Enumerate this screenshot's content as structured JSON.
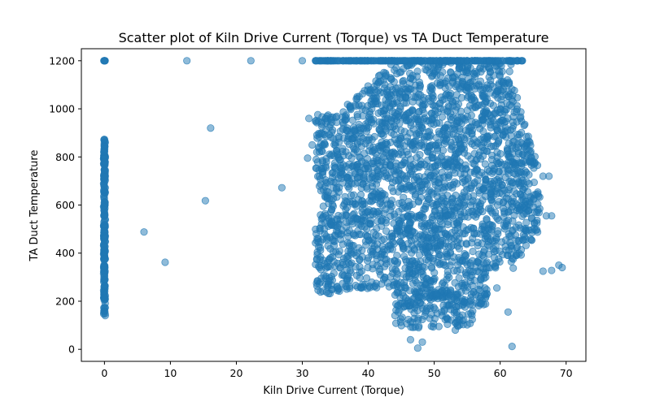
{
  "chart_data": {
    "type": "scatter",
    "title": "Scatter plot of Kiln Drive Current (Torque) vs TA Duct Temperature",
    "xlabel": "Kiln Drive Current (Torque)",
    "ylabel": "TA Duct Temperature",
    "xlim": [
      -3.5,
      73
    ],
    "ylim": [
      -50,
      1250
    ],
    "xticks": [
      0,
      10,
      20,
      30,
      40,
      50,
      60,
      70
    ],
    "yticks": [
      0,
      200,
      400,
      600,
      800,
      1000,
      1200
    ],
    "grid": false,
    "legend": "none",
    "color": "#1f77b4",
    "alpha": 0.5,
    "zero_cluster": {
      "x": 0,
      "y_range": [
        140,
        880
      ],
      "cap_y": 1200
    },
    "isolated_points": [
      {
        "x": 12.5,
        "y": 1200
      },
      {
        "x": 22.2,
        "y": 1200
      },
      {
        "x": 30.0,
        "y": 1200
      },
      {
        "x": 16.1,
        "y": 920
      },
      {
        "x": 26.9,
        "y": 672
      },
      {
        "x": 15.3,
        "y": 618
      },
      {
        "x": 6.0,
        "y": 488
      },
      {
        "x": 9.2,
        "y": 362
      }
    ],
    "dense_region": {
      "x_range": [
        31,
        70
      ],
      "y_range": [
        0,
        1200
      ],
      "saturated_y": 1200
    },
    "outlier_points": [
      {
        "x": 61.8,
        "y": 12
      },
      {
        "x": 47.5,
        "y": 5
      },
      {
        "x": 48.2,
        "y": 30
      },
      {
        "x": 46.4,
        "y": 40
      },
      {
        "x": 53.2,
        "y": 80
      },
      {
        "x": 61.2,
        "y": 155
      },
      {
        "x": 59.5,
        "y": 255
      },
      {
        "x": 69.4,
        "y": 340
      },
      {
        "x": 68.9,
        "y": 350
      },
      {
        "x": 67.8,
        "y": 328
      },
      {
        "x": 66.5,
        "y": 325
      },
      {
        "x": 67.0,
        "y": 555
      },
      {
        "x": 67.8,
        "y": 555
      },
      {
        "x": 67.4,
        "y": 720
      },
      {
        "x": 66.5,
        "y": 720
      },
      {
        "x": 31.0,
        "y": 960
      },
      {
        "x": 31.5,
        "y": 850
      },
      {
        "x": 32.2,
        "y": 820
      },
      {
        "x": 30.8,
        "y": 795
      }
    ]
  }
}
